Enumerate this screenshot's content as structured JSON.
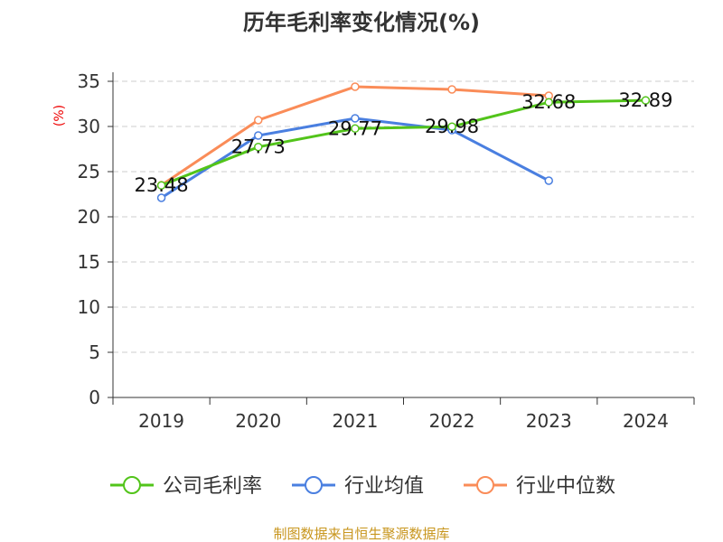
{
  "chart_data": {
    "type": "line",
    "title": "历年毛利率变化情况(%)",
    "ylabel": "(%)",
    "xlabel": "",
    "ylim": [
      0,
      35
    ],
    "yticks": [
      0,
      5,
      10,
      15,
      20,
      25,
      30,
      35
    ],
    "grid": true,
    "legend_position": "bottom",
    "categories": [
      "2019",
      "2020",
      "2021",
      "2022",
      "2023",
      "2024"
    ],
    "series": [
      {
        "name": "公司毛利率",
        "color": "#52c41a",
        "values": [
          23.48,
          27.73,
          29.77,
          29.98,
          32.68,
          32.89
        ],
        "labels": [
          "23.48",
          "27.73",
          "29.77",
          "29.98",
          "32.68",
          "32.89"
        ]
      },
      {
        "name": "行业均值",
        "color": "#4a7fe0",
        "values": [
          22.1,
          29.0,
          30.9,
          29.6,
          24.0,
          null
        ]
      },
      {
        "name": "行业中位数",
        "color": "#fa8c58",
        "values": [
          23.5,
          30.7,
          34.4,
          34.1,
          33.4,
          null
        ]
      }
    ]
  },
  "footer": "制图数据来自恒生聚源数据库"
}
